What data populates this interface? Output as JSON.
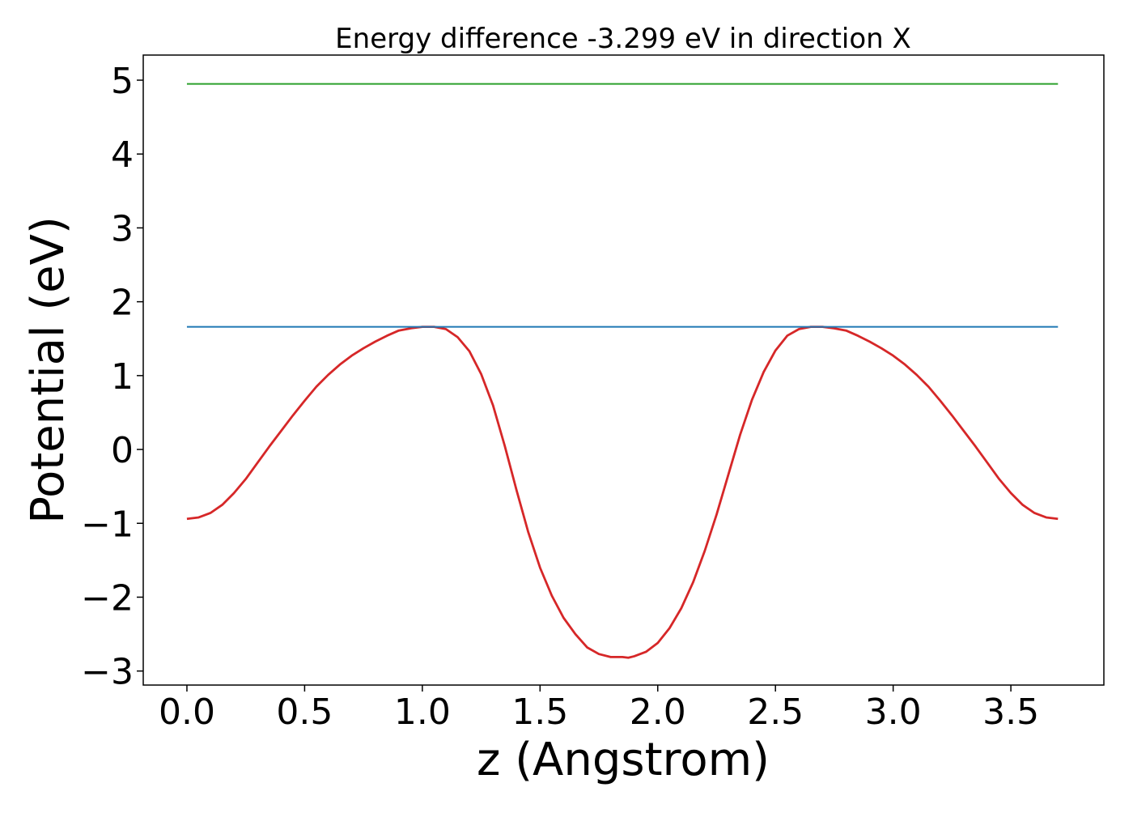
{
  "chart_data": {
    "type": "line",
    "title": "Energy difference -3.299 eV in direction X",
    "xlabel": "z (Angstrom)",
    "ylabel": "Potential (eV)",
    "xlim": [
      -0.1855,
      3.895
    ],
    "ylim": [
      -3.19,
      5.34
    ],
    "xticks": [
      0.0,
      0.5,
      1.0,
      1.5,
      2.0,
      2.5,
      3.0,
      3.5
    ],
    "xtick_labels": [
      "0.0",
      "0.5",
      "1.0",
      "1.5",
      "2.0",
      "2.5",
      "3.0",
      "3.5"
    ],
    "yticks": [
      -3,
      -2,
      -1,
      0,
      1,
      2,
      3,
      4,
      5
    ],
    "ytick_labels": [
      "−3",
      "−2",
      "−1",
      "0",
      "1",
      "2",
      "3",
      "4",
      "5"
    ],
    "grid": false,
    "legend": "none",
    "series": [
      {
        "color": "#d62728",
        "x": [
          0.0,
          0.05,
          0.1,
          0.15,
          0.2,
          0.25,
          0.3,
          0.35,
          0.4,
          0.45,
          0.5,
          0.55,
          0.6,
          0.65,
          0.7,
          0.75,
          0.8,
          0.85,
          0.9,
          0.95,
          1.0,
          1.05,
          1.1,
          1.15,
          1.2,
          1.25,
          1.3,
          1.35,
          1.4,
          1.45,
          1.5,
          1.55,
          1.6,
          1.65,
          1.7,
          1.75,
          1.8,
          1.85,
          1.875,
          1.9,
          1.95,
          2.0,
          2.05,
          2.1,
          2.15,
          2.2,
          2.25,
          2.3,
          2.35,
          2.4,
          2.45,
          2.5,
          2.55,
          2.6,
          2.65,
          2.7,
          2.75,
          2.8,
          2.85,
          2.9,
          2.95,
          3.0,
          3.05,
          3.1,
          3.15,
          3.2,
          3.25,
          3.3,
          3.35,
          3.4,
          3.45,
          3.5,
          3.55,
          3.6,
          3.65,
          3.7
        ],
        "y": [
          -0.94,
          -0.92,
          -0.86,
          -0.75,
          -0.59,
          -0.4,
          -0.18,
          0.04,
          0.25,
          0.46,
          0.66,
          0.85,
          1.01,
          1.15,
          1.27,
          1.37,
          1.46,
          1.54,
          1.61,
          1.64,
          1.66,
          1.66,
          1.63,
          1.52,
          1.33,
          1.02,
          0.6,
          0.05,
          -0.55,
          -1.12,
          -1.6,
          -1.98,
          -2.28,
          -2.5,
          -2.68,
          -2.77,
          -2.81,
          -2.81,
          -2.82,
          -2.8,
          -2.74,
          -2.62,
          -2.42,
          -2.15,
          -1.8,
          -1.37,
          -0.88,
          -0.34,
          0.2,
          0.67,
          1.05,
          1.34,
          1.54,
          1.63,
          1.66,
          1.66,
          1.64,
          1.61,
          1.54,
          1.46,
          1.37,
          1.27,
          1.15,
          1.01,
          0.85,
          0.66,
          0.46,
          0.25,
          0.04,
          -0.18,
          -0.4,
          -0.59,
          -0.75,
          -0.86,
          -0.92,
          -0.94
        ]
      },
      {
        "color": "#1f77b4",
        "x": [
          0.0,
          3.7
        ],
        "y": [
          1.66,
          1.66
        ]
      },
      {
        "color": "#2ca02c",
        "x": [
          0.0,
          3.7
        ],
        "y": [
          4.95,
          4.95
        ]
      }
    ]
  }
}
